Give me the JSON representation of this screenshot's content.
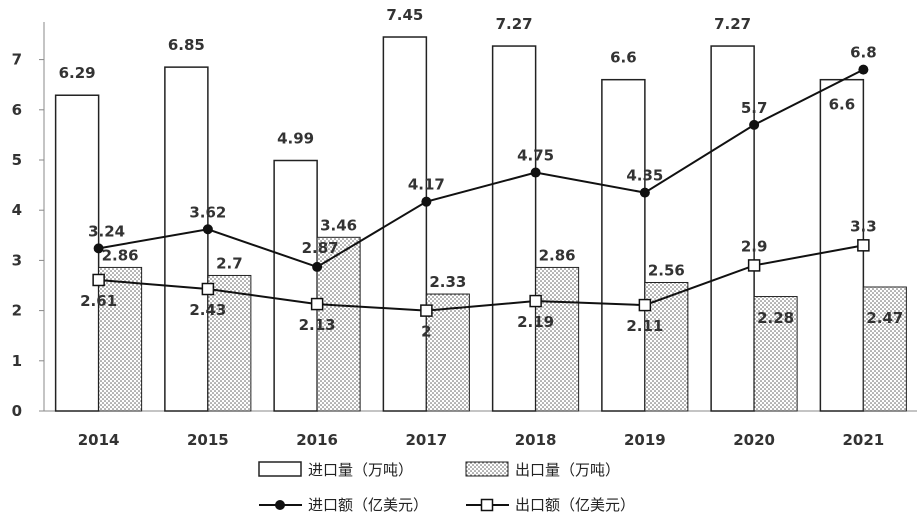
{
  "chart_data": {
    "type": "bar",
    "categories": [
      "2014",
      "2015",
      "2016",
      "2017",
      "2018",
      "2019",
      "2020",
      "2021"
    ],
    "yticks": [
      "0",
      "1",
      "2",
      "3",
      "4",
      "5",
      "6",
      "7"
    ],
    "ylim": [
      0,
      7.5
    ],
    "grid": false,
    "legend_position": "bottom",
    "series": [
      {
        "name": "进口量（万吨）",
        "kind": "bar",
        "style": "white",
        "values": [
          6.29,
          6.85,
          4.99,
          7.45,
          7.27,
          6.6,
          7.27,
          6.6
        ],
        "labels": [
          "6.29",
          "6.85",
          "4.99",
          "7.45",
          "7.27",
          "6.6",
          "7.27",
          "6.6"
        ]
      },
      {
        "name": "出口量（万吨）",
        "kind": "bar",
        "style": "hatched",
        "values": [
          2.86,
          2.7,
          3.46,
          2.33,
          2.86,
          2.56,
          2.28,
          2.47
        ],
        "labels": [
          "2.86",
          "2.7",
          "3.46",
          "2.33",
          "2.86",
          "2.56",
          "2.28",
          "2.47"
        ]
      },
      {
        "name": "进口额（亿美元）",
        "kind": "line",
        "marker": "filled-circle",
        "values": [
          3.24,
          3.62,
          2.87,
          4.17,
          4.75,
          4.35,
          5.7,
          6.8
        ],
        "labels": [
          "3.24",
          "3.62",
          "2.87",
          "4.17",
          "4.75",
          "4.35",
          "5.7",
          "6.8"
        ]
      },
      {
        "name": "出口额（亿美元）",
        "kind": "line",
        "marker": "open-square",
        "values": [
          2.61,
          2.43,
          2.13,
          2.0,
          2.19,
          2.11,
          2.9,
          3.3
        ],
        "labels": [
          "2.61",
          "2.43",
          "2.13",
          "2",
          "2.19",
          "2.11",
          "2.9",
          "3.3"
        ]
      }
    ],
    "colors": {
      "bar_fill": "#ffffff",
      "bar_stroke": "#222222",
      "hatch": "#555555",
      "line": "#111111",
      "axis": "#888888"
    }
  }
}
